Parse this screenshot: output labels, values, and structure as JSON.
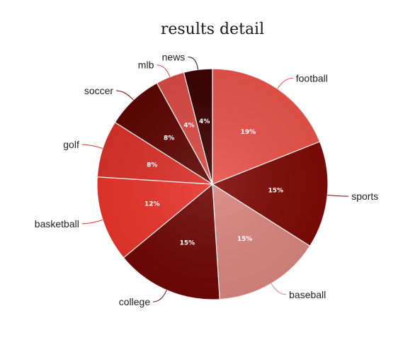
{
  "chart_data": {
    "type": "pie",
    "title": "results detail",
    "categories": [
      "football",
      "sports",
      "baseball",
      "college",
      "basketball",
      "golf",
      "soccer",
      "mlb",
      "news"
    ],
    "values": [
      19,
      15,
      15,
      15,
      12,
      8,
      8,
      4,
      4
    ],
    "value_labels": [
      "19%",
      "15%",
      "15%",
      "15%",
      "12%",
      "8%",
      "8%",
      "4%",
      "4%"
    ],
    "colors": [
      "#e8534a",
      "#7d0a06",
      "#d9857f",
      "#6e0806",
      "#e8352b",
      "#d8322a",
      "#5e0603",
      "#d84a44",
      "#3d0202"
    ],
    "legend": "none"
  }
}
